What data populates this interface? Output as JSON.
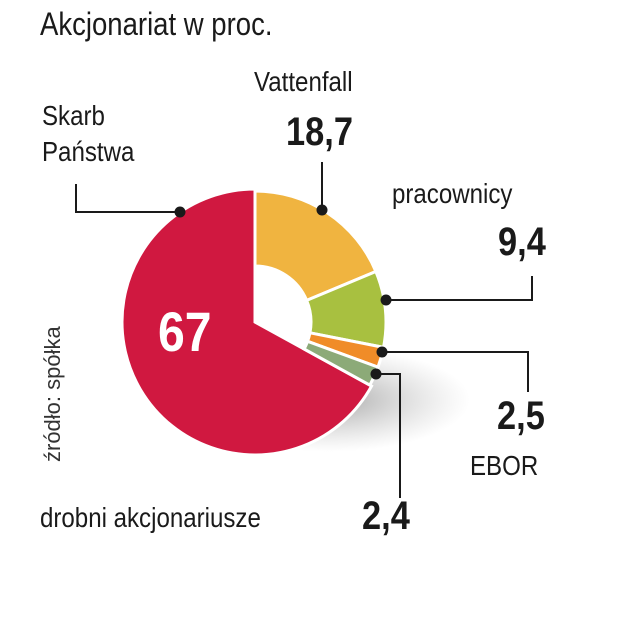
{
  "chart_data": {
    "type": "pie",
    "style": "donut",
    "title": "Akcjonariat w proc.",
    "source": "źródło: spółka",
    "slices": [
      {
        "label_lines": [
          "Skarb",
          "Państwa"
        ],
        "value": 67,
        "display": "67",
        "color": "#d01840"
      },
      {
        "label_lines": [
          "Vattenfall"
        ],
        "value": 18.7,
        "display": "18,7",
        "color": "#f0b440"
      },
      {
        "label_lines": [
          "pracownicy"
        ],
        "value": 9.4,
        "display": "9,4",
        "color": "#a8c040"
      },
      {
        "label_lines": [
          "EBOR"
        ],
        "value": 2.5,
        "display": "2,5",
        "color": "#f08c28"
      },
      {
        "label_lines": [
          "drobni akcjonariusze"
        ],
        "value": 2.4,
        "display": "2,4",
        "color": "#8caa78"
      }
    ],
    "legend": "none"
  }
}
